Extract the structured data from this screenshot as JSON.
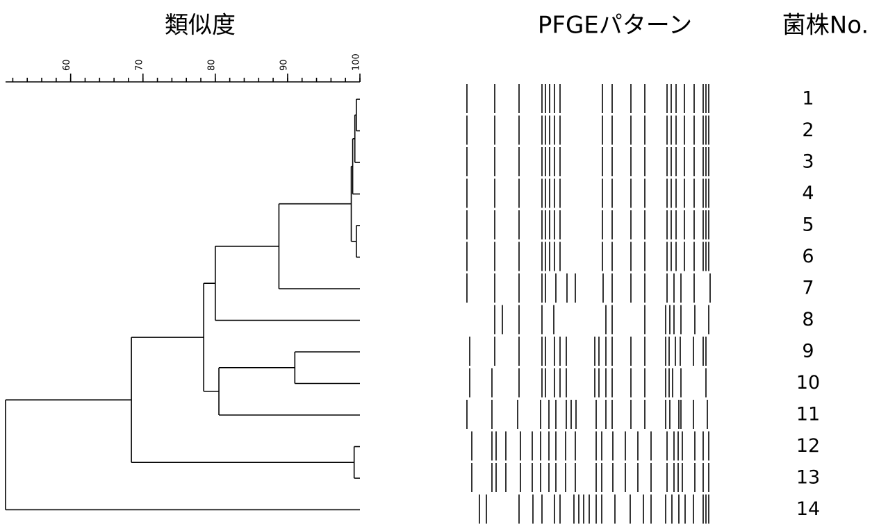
{
  "header": {
    "similarity_title": "類似度",
    "pattern_title": "PFGEパターン",
    "strain_title": "菌株No."
  },
  "dendrogram": {
    "xlim": [
      51,
      100
    ],
    "xticks": [
      60,
      70,
      80,
      90,
      100
    ],
    "tree": {
      "similarity": 51,
      "children": [
        {
          "similarity": 68.4,
          "children": [
            {
              "similarity": 78.4,
              "children": [
                {
                  "similarity": 80,
                  "children": [
                    {
                      "similarity": 88.8,
                      "children": [
                        {
                          "similarity": 98.8,
                          "children": [
                            {
                              "similarity": 99,
                              "children": [
                                {
                                  "similarity": 99.3,
                                  "children": [
                                    {
                                      "similarity": 99.5,
                                      "children": [
                                        {
                                          "strain": "1"
                                        },
                                        {
                                          "strain": "2"
                                        }
                                      ]
                                    },
                                    {
                                      "strain": "3"
                                    }
                                  ]
                                },
                                {
                                  "strain": "4"
                                }
                              ]
                            },
                            {
                              "similarity": 99.5,
                              "children": [
                                {
                                  "strain": "5"
                                },
                                {
                                  "strain": "6"
                                }
                              ]
                            }
                          ]
                        },
                        {
                          "strain": "7"
                        }
                      ]
                    },
                    {
                      "strain": "8"
                    }
                  ]
                },
                {
                  "similarity": 80.5,
                  "children": [
                    {
                      "similarity": 91,
                      "children": [
                        {
                          "strain": "9"
                        },
                        {
                          "strain": "10"
                        }
                      ]
                    },
                    {
                      "strain": "11"
                    }
                  ]
                }
              ]
            },
            {
              "similarity": 99.2,
              "children": [
                {
                  "strain": "12"
                },
                {
                  "strain": "13"
                }
              ]
            }
          ]
        },
        {
          "strain": "14"
        }
      ]
    }
  }
}
